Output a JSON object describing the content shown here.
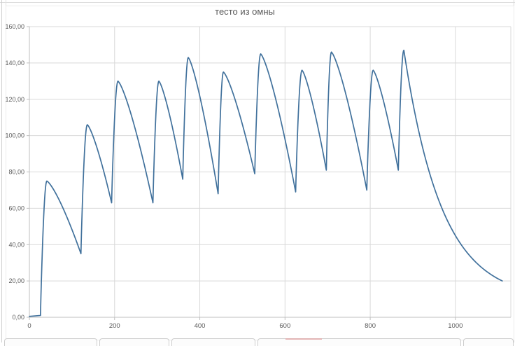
{
  "chart": {
    "title_color": "#595959",
    "line_color": "#41719C",
    "gridline_color": "#D9D9D9",
    "axis_line_color": "#BFBFBF",
    "tick_label_color": "#595959",
    "plot_background": "#FFFFFF"
  },
  "chart_data": {
    "type": "line",
    "title": "тесто из омны",
    "xlabel": "",
    "ylabel": "",
    "xlim": [
      0,
      1130
    ],
    "ylim": [
      0,
      160
    ],
    "grid": true,
    "legend": false,
    "x_ticks": [
      0,
      200,
      400,
      600,
      800,
      1000
    ],
    "x_tick_labels": [
      "0",
      "200",
      "400",
      "600",
      "800",
      "1000"
    ],
    "y_ticks": [
      0,
      20,
      40,
      60,
      80,
      100,
      120,
      140,
      160
    ],
    "y_tick_labels": [
      "0,00",
      "20,00",
      "40,00",
      "60,00",
      "80,00",
      "100,00",
      "120,00",
      "140,00",
      "160,00"
    ],
    "pattern": "repeated steep rise with rounded peak then accelerating decay to sharp trough; final long exponential decay",
    "key_points": {
      "start": [
        0,
        0.5
      ],
      "rise_start": [
        26,
        1
      ],
      "peaks": [
        [
          41,
          75
        ],
        [
          136,
          106
        ],
        [
          208,
          130
        ],
        [
          304,
          130
        ],
        [
          373,
          143
        ],
        [
          455.5,
          135
        ],
        [
          543,
          145
        ],
        [
          640,
          136
        ],
        [
          709,
          146
        ],
        [
          807,
          136
        ],
        [
          879,
          147
        ]
      ],
      "troughs": [
        [
          121,
          35
        ],
        [
          193,
          63
        ],
        [
          290,
          63
        ],
        [
          360,
          76
        ],
        [
          443,
          68
        ],
        [
          529,
          79
        ],
        [
          625,
          69
        ],
        [
          697,
          81
        ],
        [
          792,
          70
        ],
        [
          866,
          81
        ]
      ],
      "end": [
        1110,
        20
      ]
    }
  }
}
